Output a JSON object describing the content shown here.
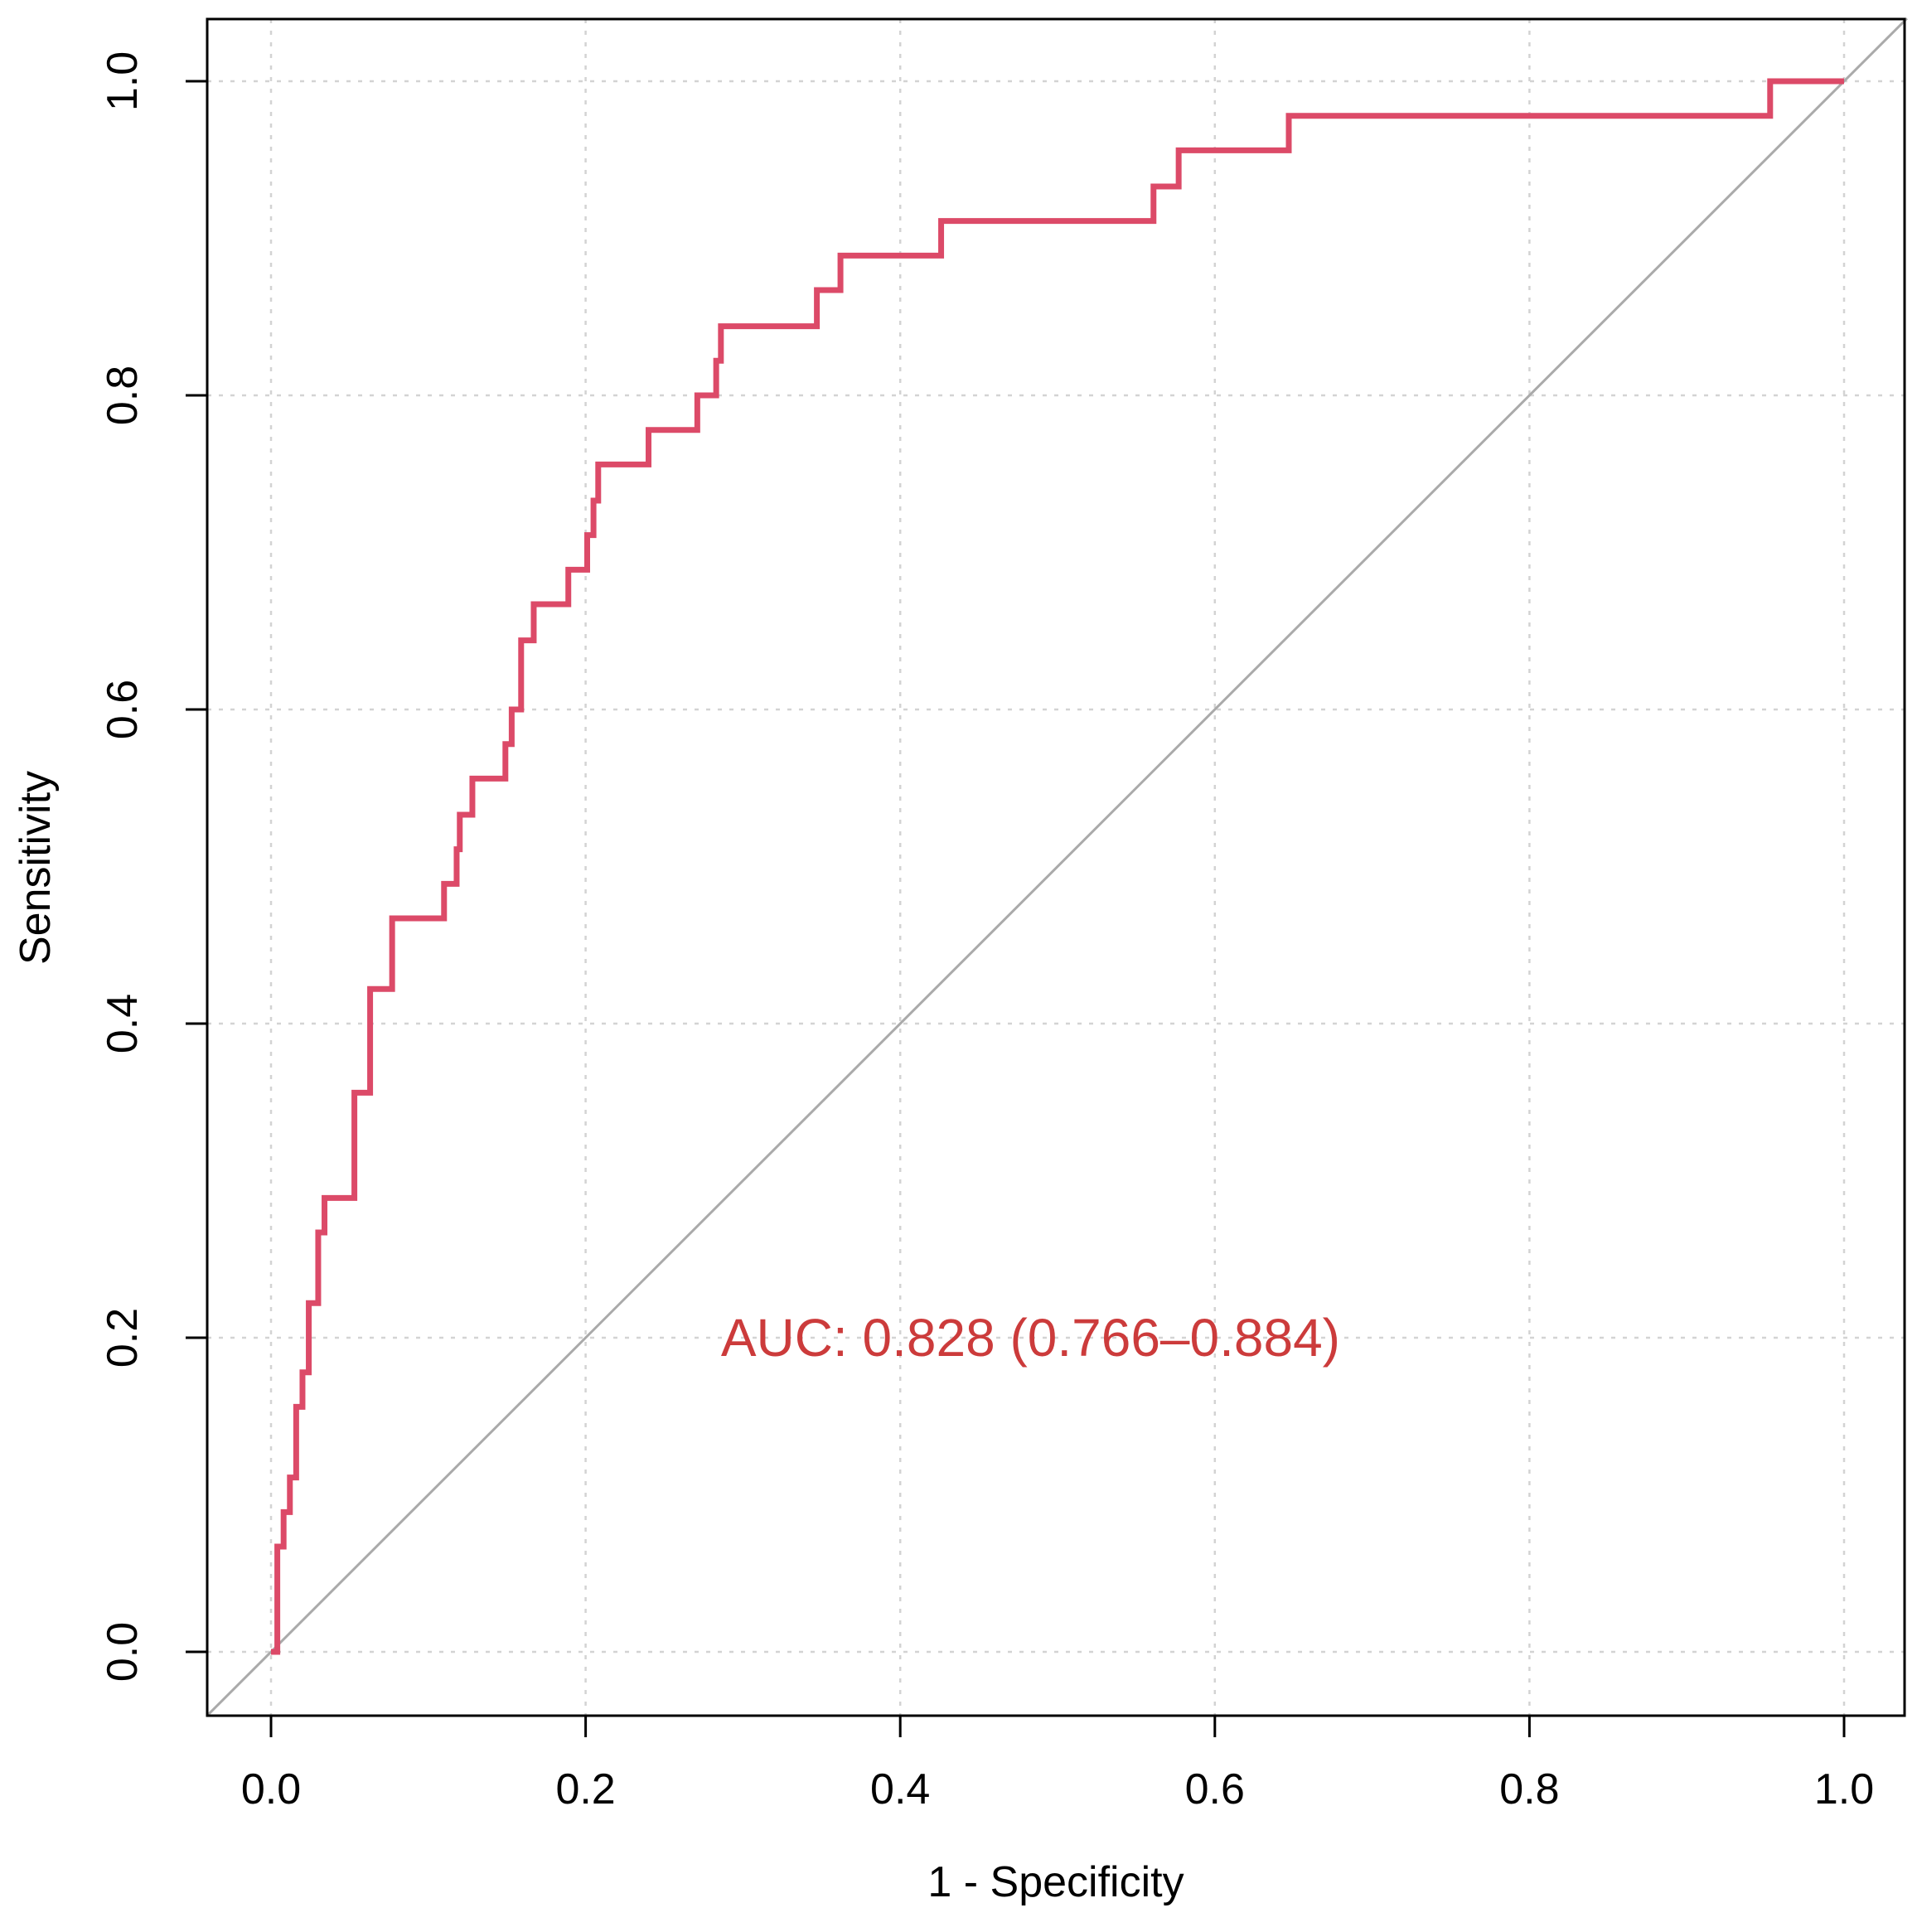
{
  "chart_data": {
    "type": "line",
    "title": "",
    "xlabel": "1 - Specificity",
    "ylabel": "Sensitivity",
    "xlim": [
      0,
      1
    ],
    "ylim": [
      0,
      1
    ],
    "xticks": [
      0.0,
      0.2,
      0.4,
      0.6,
      0.8,
      1.0
    ],
    "yticks": [
      0.0,
      0.2,
      0.4,
      0.6,
      0.8,
      1.0
    ],
    "xtick_labels": [
      "0.0",
      "0.2",
      "0.4",
      "0.6",
      "0.8",
      "1.0"
    ],
    "ytick_labels": [
      "0.0",
      "0.2",
      "0.4",
      "0.6",
      "0.8",
      "1.0"
    ],
    "grid": true,
    "colors": {
      "curve": "#dc4a68",
      "diagonal": "#aaaaaa",
      "annotation": "#cc3b3b",
      "grid": "#d3d3d3",
      "frame": "#000000"
    },
    "series": [
      {
        "name": "ROC",
        "step": true,
        "x": [
          0.0,
          0.004,
          0.008,
          0.012,
          0.016,
          0.02,
          0.024,
          0.03,
          0.034,
          0.053,
          0.063,
          0.077,
          0.11,
          0.118,
          0.12,
          0.128,
          0.149,
          0.153,
          0.159,
          0.167,
          0.189,
          0.201,
          0.205,
          0.208,
          0.24,
          0.271,
          0.283,
          0.286,
          0.347,
          0.362,
          0.426,
          0.561,
          0.577,
          0.647,
          0.953,
          1.0
        ],
        "y": [
          0.0,
          0.067,
          0.089,
          0.111,
          0.156,
          0.178,
          0.222,
          0.267,
          0.289,
          0.356,
          0.422,
          0.467,
          0.489,
          0.511,
          0.533,
          0.556,
          0.578,
          0.6,
          0.644,
          0.667,
          0.689,
          0.711,
          0.733,
          0.756,
          0.778,
          0.8,
          0.822,
          0.844,
          0.867,
          0.889,
          0.911,
          0.933,
          0.956,
          0.978,
          1.0,
          1.0
        ]
      },
      {
        "name": "reference",
        "x": [
          -0.04,
          1.04
        ],
        "y": [
          -0.04,
          1.04
        ]
      }
    ],
    "annotations": [
      {
        "text": "AUC: 0.828 (0.766–0.884)",
        "x": 0.286,
        "y": 0.2
      }
    ]
  }
}
